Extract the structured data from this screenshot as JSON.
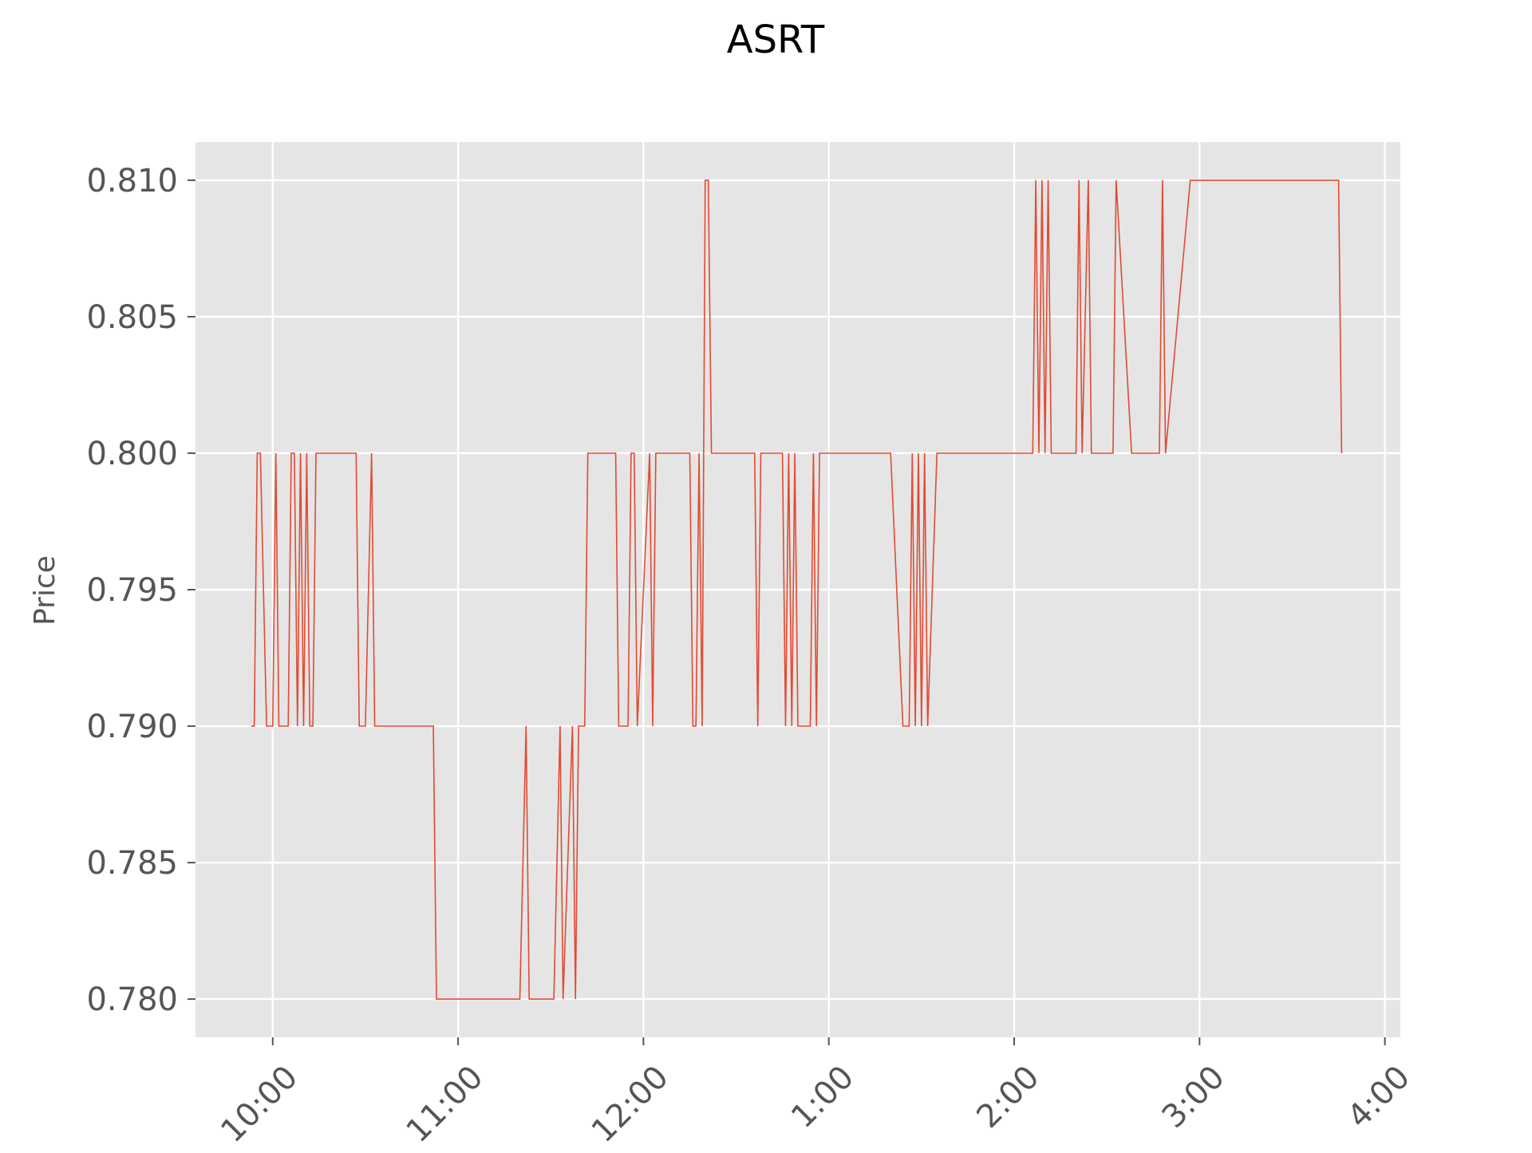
{
  "chart_data": {
    "type": "line",
    "title": "ASRT",
    "xlabel": "",
    "ylabel": "Price",
    "xlim": [
      "09:35",
      "16:05"
    ],
    "ylim": [
      0.7786,
      0.8114
    ],
    "grid": true,
    "legend": "none",
    "style": {
      "line_color": "#e24a33",
      "plot_background": "#e5e5e5",
      "grid_color": "#ffffff"
    },
    "xticks": [
      {
        "time": "10:00",
        "label": "10:00"
      },
      {
        "time": "11:00",
        "label": "11:00"
      },
      {
        "time": "12:00",
        "label": "12:00"
      },
      {
        "time": "13:00",
        "label": "1:00"
      },
      {
        "time": "14:00",
        "label": "2:00"
      },
      {
        "time": "15:00",
        "label": "3:00"
      },
      {
        "time": "16:00",
        "label": "4:00"
      }
    ],
    "yticks": [
      {
        "value": 0.78,
        "label": "0.780"
      },
      {
        "value": 0.785,
        "label": "0.785"
      },
      {
        "value": 0.79,
        "label": "0.790"
      },
      {
        "value": 0.795,
        "label": "0.795"
      },
      {
        "value": 0.8,
        "label": "0.800"
      },
      {
        "value": 0.805,
        "label": "0.805"
      },
      {
        "value": 0.81,
        "label": "0.810"
      }
    ],
    "series": [
      {
        "points": [
          [
            "09:53",
            0.79
          ],
          [
            "09:54",
            0.79
          ],
          [
            "09:55",
            0.8
          ],
          [
            "09:56",
            0.8
          ],
          [
            "09:58",
            0.79
          ],
          [
            "10:00",
            0.79
          ],
          [
            "10:01",
            0.8
          ],
          [
            "10:02",
            0.79
          ],
          [
            "10:05",
            0.79
          ],
          [
            "10:06",
            0.8
          ],
          [
            "10:07",
            0.8
          ],
          [
            "10:08",
            0.79
          ],
          [
            "10:09",
            0.8
          ],
          [
            "10:10",
            0.79
          ],
          [
            "10:11",
            0.8
          ],
          [
            "10:12",
            0.79
          ],
          [
            "10:13",
            0.79
          ],
          [
            "10:14",
            0.8
          ],
          [
            "10:27",
            0.8
          ],
          [
            "10:28",
            0.79
          ],
          [
            "10:30",
            0.79
          ],
          [
            "10:32",
            0.8
          ],
          [
            "10:33",
            0.79
          ],
          [
            "10:52",
            0.79
          ],
          [
            "10:53",
            0.78
          ],
          [
            "11:20",
            0.78
          ],
          [
            "11:22",
            0.79
          ],
          [
            "11:23",
            0.78
          ],
          [
            "11:31",
            0.78
          ],
          [
            "11:33",
            0.79
          ],
          [
            "11:34",
            0.78
          ],
          [
            "11:37",
            0.79
          ],
          [
            "11:38",
            0.78
          ],
          [
            "11:39",
            0.79
          ],
          [
            "11:41",
            0.79
          ],
          [
            "11:42",
            0.8
          ],
          [
            "11:51",
            0.8
          ],
          [
            "11:52",
            0.79
          ],
          [
            "11:55",
            0.79
          ],
          [
            "11:56",
            0.8
          ],
          [
            "11:57",
            0.8
          ],
          [
            "11:58",
            0.79
          ],
          [
            "12:02",
            0.8
          ],
          [
            "12:03",
            0.79
          ],
          [
            "12:04",
            0.8
          ],
          [
            "12:15",
            0.8
          ],
          [
            "12:16",
            0.79
          ],
          [
            "12:17",
            0.79
          ],
          [
            "12:18",
            0.8
          ],
          [
            "12:19",
            0.79
          ],
          [
            "12:20",
            0.81
          ],
          [
            "12:21",
            0.81
          ],
          [
            "12:22",
            0.8
          ],
          [
            "12:36",
            0.8
          ],
          [
            "12:37",
            0.79
          ],
          [
            "12:38",
            0.8
          ],
          [
            "12:45",
            0.8
          ],
          [
            "12:46",
            0.79
          ],
          [
            "12:47",
            0.8
          ],
          [
            "12:48",
            0.79
          ],
          [
            "12:49",
            0.8
          ],
          [
            "12:50",
            0.79
          ],
          [
            "12:54",
            0.79
          ],
          [
            "12:55",
            0.8
          ],
          [
            "12:56",
            0.79
          ],
          [
            "12:57",
            0.8
          ],
          [
            "13:20",
            0.8
          ],
          [
            "13:24",
            0.79
          ],
          [
            "13:26",
            0.79
          ],
          [
            "13:27",
            0.8
          ],
          [
            "13:28",
            0.79
          ],
          [
            "13:29",
            0.8
          ],
          [
            "13:30",
            0.79
          ],
          [
            "13:31",
            0.8
          ],
          [
            "13:32",
            0.79
          ],
          [
            "13:35",
            0.8
          ],
          [
            "14:06",
            0.8
          ],
          [
            "14:07",
            0.81
          ],
          [
            "14:08",
            0.8
          ],
          [
            "14:09",
            0.81
          ],
          [
            "14:10",
            0.8
          ],
          [
            "14:11",
            0.81
          ],
          [
            "14:12",
            0.8
          ],
          [
            "14:20",
            0.8
          ],
          [
            "14:21",
            0.81
          ],
          [
            "14:22",
            0.8
          ],
          [
            "14:24",
            0.81
          ],
          [
            "14:25",
            0.8
          ],
          [
            "14:32",
            0.8
          ],
          [
            "14:33",
            0.81
          ],
          [
            "14:38",
            0.8
          ],
          [
            "14:47",
            0.8
          ],
          [
            "14:48",
            0.81
          ],
          [
            "14:49",
            0.8
          ],
          [
            "14:57",
            0.81
          ],
          [
            "15:45",
            0.81
          ],
          [
            "15:46",
            0.8
          ]
        ]
      }
    ]
  }
}
